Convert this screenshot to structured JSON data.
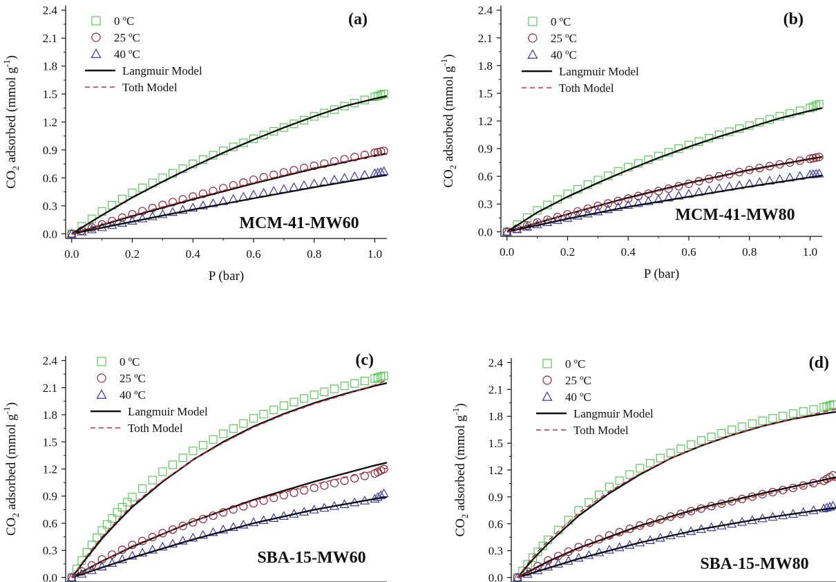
{
  "colors": {
    "c0": "#5cc85c",
    "c25": "#8a2a3a",
    "c40": "#3a3aa8",
    "langmuir": "#111111",
    "toth": "#c03040",
    "axis": "#111111"
  },
  "chart_data": [
    {
      "type": "scatter",
      "panel_label": "(a)",
      "sample": "MCM-41-MW60",
      "xlabel": "P (bar)",
      "ylabel": "CO2 adsorbed (mmol g-1)",
      "xlim": [
        -0.02,
        1.04
      ],
      "ylim": [
        -0.05,
        2.45
      ],
      "xticks": [
        "0.0",
        "0.2",
        "0.4",
        "0.6",
        "0.8",
        "1.0"
      ],
      "yticks": [
        "0.0",
        "0.3",
        "0.6",
        "0.9",
        "1.2",
        "1.5",
        "1.8",
        "2.1",
        "2.4"
      ],
      "legend": [
        "0 ºC",
        "25 ºC",
        "40 ºC",
        "Langmuir Model",
        "Toth Model"
      ],
      "series": [
        {
          "name": "0 ºC",
          "marker": "square",
          "x": [
            0.0,
            0.1,
            0.2,
            0.3,
            0.4,
            0.5,
            0.6,
            0.7,
            0.8,
            0.9,
            1.0,
            1.03
          ],
          "y": [
            0.0,
            0.24,
            0.44,
            0.6,
            0.75,
            0.89,
            1.02,
            1.14,
            1.26,
            1.37,
            1.47,
            1.5
          ]
        },
        {
          "name": "25 ºC",
          "marker": "circle",
          "x": [
            0.0,
            0.1,
            0.2,
            0.3,
            0.4,
            0.5,
            0.6,
            0.7,
            0.8,
            0.9,
            1.0,
            1.03
          ],
          "y": [
            0.0,
            0.1,
            0.21,
            0.31,
            0.4,
            0.49,
            0.58,
            0.66,
            0.73,
            0.8,
            0.87,
            0.89
          ]
        },
        {
          "name": "40 ºC",
          "marker": "triangle",
          "x": [
            0.0,
            0.1,
            0.2,
            0.3,
            0.4,
            0.5,
            0.6,
            0.7,
            0.8,
            0.9,
            1.0,
            1.03
          ],
          "y": [
            0.0,
            0.07,
            0.14,
            0.21,
            0.28,
            0.35,
            0.42,
            0.48,
            0.54,
            0.6,
            0.65,
            0.67
          ]
        }
      ],
      "models": [
        {
          "name": "Langmuir Model",
          "style": "solid",
          "x": [
            0.0,
            0.1,
            0.2,
            0.3,
            0.4,
            0.5,
            0.6,
            0.7,
            0.8,
            0.9,
            1.0,
            1.04
          ],
          "y": [
            0.0,
            0.2,
            0.39,
            0.56,
            0.72,
            0.87,
            1.01,
            1.14,
            1.26,
            1.37,
            1.45,
            1.48
          ]
        },
        {
          "name": "Langmuir Model",
          "style": "solid",
          "x": [
            0.0,
            0.2,
            0.4,
            0.6,
            0.8,
            1.0,
            1.04
          ],
          "y": [
            0.0,
            0.19,
            0.37,
            0.54,
            0.7,
            0.84,
            0.86
          ]
        },
        {
          "name": "Langmuir Model",
          "style": "solid",
          "x": [
            0.0,
            0.2,
            0.4,
            0.6,
            0.8,
            1.0,
            1.04
          ],
          "y": [
            0.0,
            0.13,
            0.26,
            0.38,
            0.5,
            0.61,
            0.63
          ]
        },
        {
          "name": "Toth Model",
          "style": "dashed",
          "x": [
            0.0,
            0.2,
            0.4,
            0.6,
            0.8,
            1.0,
            1.04
          ],
          "y": [
            0.0,
            0.2,
            0.38,
            0.55,
            0.71,
            0.84,
            0.86
          ]
        }
      ]
    },
    {
      "type": "scatter",
      "panel_label": "(b)",
      "sample": "MCM-41-MW80",
      "xlabel": "P (bar)",
      "ylabel": "CO2 adsorbed (mmol g-1)",
      "xlim": [
        -0.02,
        1.04
      ],
      "ylim": [
        -0.05,
        2.45
      ],
      "xticks": [
        "0.0",
        "0.2",
        "0.4",
        "0.6",
        "0.8",
        "1.0"
      ],
      "yticks": [
        "0.0",
        "0.3",
        "0.6",
        "0.9",
        "1.2",
        "1.5",
        "1.8",
        "2.1",
        "2.4"
      ],
      "legend": [
        "0 ºC",
        "25 ºC",
        "40 ºC",
        "Langmuir Model",
        "Toth Model"
      ],
      "series": [
        {
          "name": "0 ºC",
          "marker": "square",
          "x": [
            0.0,
            0.1,
            0.2,
            0.3,
            0.4,
            0.5,
            0.6,
            0.7,
            0.8,
            0.9,
            1.0,
            1.03
          ],
          "y": [
            0.0,
            0.23,
            0.41,
            0.56,
            0.7,
            0.82,
            0.94,
            1.05,
            1.15,
            1.25,
            1.34,
            1.38
          ]
        },
        {
          "name": "25 ºC",
          "marker": "circle",
          "x": [
            0.0,
            0.1,
            0.2,
            0.3,
            0.4,
            0.5,
            0.6,
            0.7,
            0.8,
            0.9,
            1.0,
            1.03
          ],
          "y": [
            0.0,
            0.1,
            0.19,
            0.28,
            0.36,
            0.44,
            0.52,
            0.6,
            0.67,
            0.73,
            0.79,
            0.81
          ]
        },
        {
          "name": "40 ºC",
          "marker": "triangle",
          "x": [
            0.0,
            0.1,
            0.2,
            0.3,
            0.4,
            0.5,
            0.6,
            0.7,
            0.8,
            0.9,
            1.0,
            1.03
          ],
          "y": [
            0.0,
            0.08,
            0.15,
            0.22,
            0.29,
            0.35,
            0.41,
            0.47,
            0.52,
            0.57,
            0.62,
            0.63
          ]
        }
      ],
      "models": [
        {
          "name": "Langmuir Model",
          "style": "solid",
          "x": [
            0.0,
            0.1,
            0.2,
            0.3,
            0.4,
            0.5,
            0.6,
            0.7,
            0.8,
            0.9,
            1.0,
            1.04
          ],
          "y": [
            0.0,
            0.21,
            0.38,
            0.53,
            0.67,
            0.8,
            0.92,
            1.03,
            1.13,
            1.23,
            1.31,
            1.34
          ]
        },
        {
          "name": "Langmuir Model",
          "style": "solid",
          "x": [
            0.0,
            0.2,
            0.4,
            0.6,
            0.8,
            1.0,
            1.04
          ],
          "y": [
            0.0,
            0.19,
            0.37,
            0.53,
            0.67,
            0.79,
            0.81
          ]
        },
        {
          "name": "Langmuir Model",
          "style": "solid",
          "x": [
            0.0,
            0.2,
            0.4,
            0.6,
            0.8,
            1.0,
            1.04
          ],
          "y": [
            0.0,
            0.14,
            0.27,
            0.38,
            0.49,
            0.59,
            0.61
          ]
        },
        {
          "name": "Toth Model",
          "style": "dashed",
          "x": [
            0.0,
            0.2,
            0.4,
            0.6,
            0.8,
            1.0,
            1.04
          ],
          "y": [
            0.0,
            0.19,
            0.36,
            0.52,
            0.66,
            0.78,
            0.8
          ]
        }
      ]
    },
    {
      "type": "scatter",
      "panel_label": "(c)",
      "sample": "SBA-15-MW60",
      "xlabel": "",
      "ylabel": "CO2 adsorbed (mmol g-1)",
      "xlim": [
        -0.02,
        1.04
      ],
      "ylim": [
        -0.05,
        2.45
      ],
      "xticks": [],
      "yticks": [
        "0.0",
        "0.3",
        "0.6",
        "0.9",
        "1.2",
        "1.5",
        "1.8",
        "2.1",
        "2.4"
      ],
      "legend": [
        "0 ºC",
        "25 ºC",
        "40 ºC",
        "Langmuir Model",
        "Toth Model"
      ],
      "series": [
        {
          "name": "0 ºC",
          "marker": "square",
          "x": [
            0.0,
            0.05,
            0.1,
            0.15,
            0.2,
            0.3,
            0.4,
            0.5,
            0.6,
            0.7,
            0.8,
            0.9,
            1.0,
            1.03
          ],
          "y": [
            0.0,
            0.28,
            0.52,
            0.72,
            0.89,
            1.17,
            1.4,
            1.59,
            1.76,
            1.9,
            2.02,
            2.12,
            2.2,
            2.23
          ]
        },
        {
          "name": "25 ºC",
          "marker": "circle",
          "x": [
            0.0,
            0.1,
            0.2,
            0.3,
            0.4,
            0.5,
            0.6,
            0.7,
            0.8,
            0.9,
            1.0,
            1.03
          ],
          "y": [
            0.0,
            0.2,
            0.36,
            0.49,
            0.61,
            0.72,
            0.82,
            0.91,
            0.99,
            1.07,
            1.15,
            1.2
          ]
        },
        {
          "name": "40 ºC",
          "marker": "triangle",
          "x": [
            0.0,
            0.1,
            0.2,
            0.3,
            0.4,
            0.5,
            0.6,
            0.7,
            0.8,
            0.9,
            1.0,
            1.03
          ],
          "y": [
            0.0,
            0.12,
            0.24,
            0.34,
            0.44,
            0.53,
            0.61,
            0.68,
            0.75,
            0.81,
            0.87,
            0.93
          ]
        }
      ],
      "models": [
        {
          "name": "Langmuir Model",
          "style": "solid",
          "x": [
            0.0,
            0.05,
            0.1,
            0.15,
            0.2,
            0.3,
            0.4,
            0.5,
            0.6,
            0.7,
            0.8,
            0.9,
            1.0,
            1.04
          ],
          "y": [
            0.0,
            0.22,
            0.43,
            0.61,
            0.78,
            1.06,
            1.3,
            1.5,
            1.67,
            1.81,
            1.93,
            2.03,
            2.12,
            2.15
          ]
        },
        {
          "name": "Langmuir Model",
          "style": "solid",
          "x": [
            0.0,
            0.1,
            0.2,
            0.4,
            0.6,
            0.8,
            1.0,
            1.04
          ],
          "y": [
            0.0,
            0.18,
            0.34,
            0.62,
            0.86,
            1.06,
            1.24,
            1.27
          ]
        },
        {
          "name": "Langmuir Model",
          "style": "solid",
          "x": [
            0.0,
            0.2,
            0.4,
            0.6,
            0.8,
            1.0,
            1.04
          ],
          "y": [
            0.0,
            0.22,
            0.42,
            0.6,
            0.75,
            0.87,
            0.89
          ]
        },
        {
          "name": "Toth Model",
          "style": "dashed",
          "x": [
            0.0,
            0.05,
            0.1,
            0.15,
            0.2,
            0.3,
            0.4,
            0.5,
            0.6,
            0.7,
            0.8,
            0.9,
            1.0,
            1.04
          ],
          "y": [
            0.0,
            0.24,
            0.45,
            0.63,
            0.8,
            1.07,
            1.3,
            1.49,
            1.66,
            1.8,
            1.92,
            2.02,
            2.13,
            2.18
          ]
        },
        {
          "name": "Toth Model",
          "style": "dashed",
          "x": [
            0.0,
            0.2,
            0.4,
            0.6,
            0.8,
            1.0,
            1.04
          ],
          "y": [
            0.0,
            0.35,
            0.62,
            0.85,
            1.03,
            1.18,
            1.21
          ]
        }
      ]
    },
    {
      "type": "scatter",
      "panel_label": "(d)",
      "sample": "SBA-15-MW80",
      "xlabel": "",
      "ylabel": "CO2 adsorbed (mmol g-1)",
      "xlim": [
        -0.02,
        1.04
      ],
      "ylim": [
        -0.05,
        2.45
      ],
      "xticks": [],
      "yticks": [
        "0.0",
        "0.3",
        "0.6",
        "0.9",
        "1.2",
        "1.5",
        "1.8",
        "2.1",
        "2.4"
      ],
      "legend": [
        "0 ºC",
        "25 ºC",
        "40 ºC",
        "Langmuir Model",
        "Toth Model"
      ],
      "series": [
        {
          "name": "0 ºC",
          "marker": "square",
          "x": [
            0.0,
            0.05,
            0.1,
            0.2,
            0.3,
            0.4,
            0.5,
            0.6,
            0.7,
            0.8,
            0.9,
            1.0,
            1.03
          ],
          "y": [
            0.0,
            0.22,
            0.42,
            0.75,
            1.01,
            1.22,
            1.39,
            1.53,
            1.65,
            1.75,
            1.83,
            1.9,
            1.93
          ]
        },
        {
          "name": "25 ºC",
          "marker": "circle",
          "x": [
            0.0,
            0.1,
            0.2,
            0.3,
            0.4,
            0.5,
            0.6,
            0.7,
            0.8,
            0.9,
            1.0,
            1.03
          ],
          "y": [
            0.0,
            0.19,
            0.34,
            0.47,
            0.58,
            0.68,
            0.77,
            0.85,
            0.93,
            1.0,
            1.08,
            1.14
          ]
        },
        {
          "name": "40 ºC",
          "marker": "triangle",
          "x": [
            0.0,
            0.1,
            0.2,
            0.3,
            0.4,
            0.5,
            0.6,
            0.7,
            0.8,
            0.9,
            1.0,
            1.03
          ],
          "y": [
            0.0,
            0.12,
            0.22,
            0.31,
            0.39,
            0.47,
            0.54,
            0.6,
            0.66,
            0.71,
            0.77,
            0.8
          ]
        }
      ],
      "models": [
        {
          "name": "Langmuir Model",
          "style": "solid",
          "x": [
            0.0,
            0.05,
            0.1,
            0.2,
            0.3,
            0.4,
            0.5,
            0.6,
            0.7,
            0.8,
            0.9,
            1.0,
            1.04
          ],
          "y": [
            0.0,
            0.2,
            0.38,
            0.69,
            0.94,
            1.15,
            1.33,
            1.47,
            1.59,
            1.69,
            1.77,
            1.83,
            1.85
          ]
        },
        {
          "name": "Langmuir Model",
          "style": "solid",
          "x": [
            0.0,
            0.1,
            0.2,
            0.4,
            0.6,
            0.8,
            1.0,
            1.04
          ],
          "y": [
            0.0,
            0.18,
            0.33,
            0.58,
            0.78,
            0.94,
            1.09,
            1.12
          ]
        },
        {
          "name": "Langmuir Model",
          "style": "solid",
          "x": [
            0.0,
            0.2,
            0.4,
            0.6,
            0.8,
            1.0,
            1.04
          ],
          "y": [
            0.0,
            0.21,
            0.39,
            0.54,
            0.66,
            0.76,
            0.78
          ]
        },
        {
          "name": "Toth Model",
          "style": "dashed",
          "x": [
            0.0,
            0.05,
            0.1,
            0.2,
            0.3,
            0.4,
            0.5,
            0.6,
            0.7,
            0.8,
            0.9,
            1.0,
            1.04
          ],
          "y": [
            0.0,
            0.23,
            0.41,
            0.72,
            0.96,
            1.16,
            1.33,
            1.47,
            1.59,
            1.69,
            1.77,
            1.85,
            1.88
          ]
        },
        {
          "name": "Toth Model",
          "style": "dashed",
          "x": [
            0.0,
            0.2,
            0.4,
            0.6,
            0.8,
            1.0,
            1.04
          ],
          "y": [
            0.0,
            0.32,
            0.56,
            0.76,
            0.92,
            1.06,
            1.09
          ]
        }
      ]
    }
  ]
}
